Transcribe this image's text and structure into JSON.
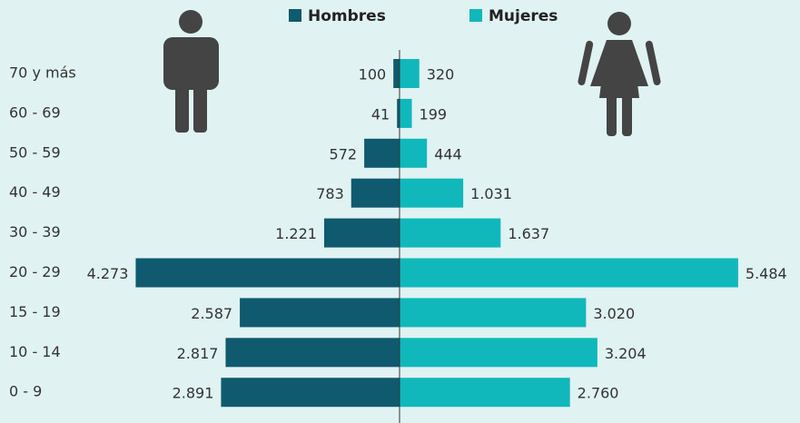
{
  "chart_data": {
    "type": "pyramid",
    "categories": [
      "70 y más",
      "60 - 69",
      "50 - 59",
      "40 - 49",
      "30 - 39",
      "20 - 29",
      "15 - 19",
      "10 - 14",
      "0 - 9"
    ],
    "series": [
      {
        "name": "Hombres",
        "color": "#0f5a6e",
        "side": "left",
        "values": [
          100,
          41,
          572,
          783,
          1221,
          4273,
          2587,
          2817,
          2891
        ],
        "value_labels": [
          "100",
          "41",
          "572",
          "783",
          "1.221",
          "4.273",
          "2.587",
          "2.817",
          "2.891"
        ]
      },
      {
        "name": "Mujeres",
        "color": "#10b8bb",
        "side": "right",
        "values": [
          320,
          199,
          444,
          1031,
          1637,
          5484,
          3020,
          3204,
          2760
        ],
        "value_labels": [
          "320",
          "199",
          "444",
          "1.031",
          "1.637",
          "5.484",
          "3.020",
          "3.204",
          "2.760"
        ]
      }
    ]
  }
}
